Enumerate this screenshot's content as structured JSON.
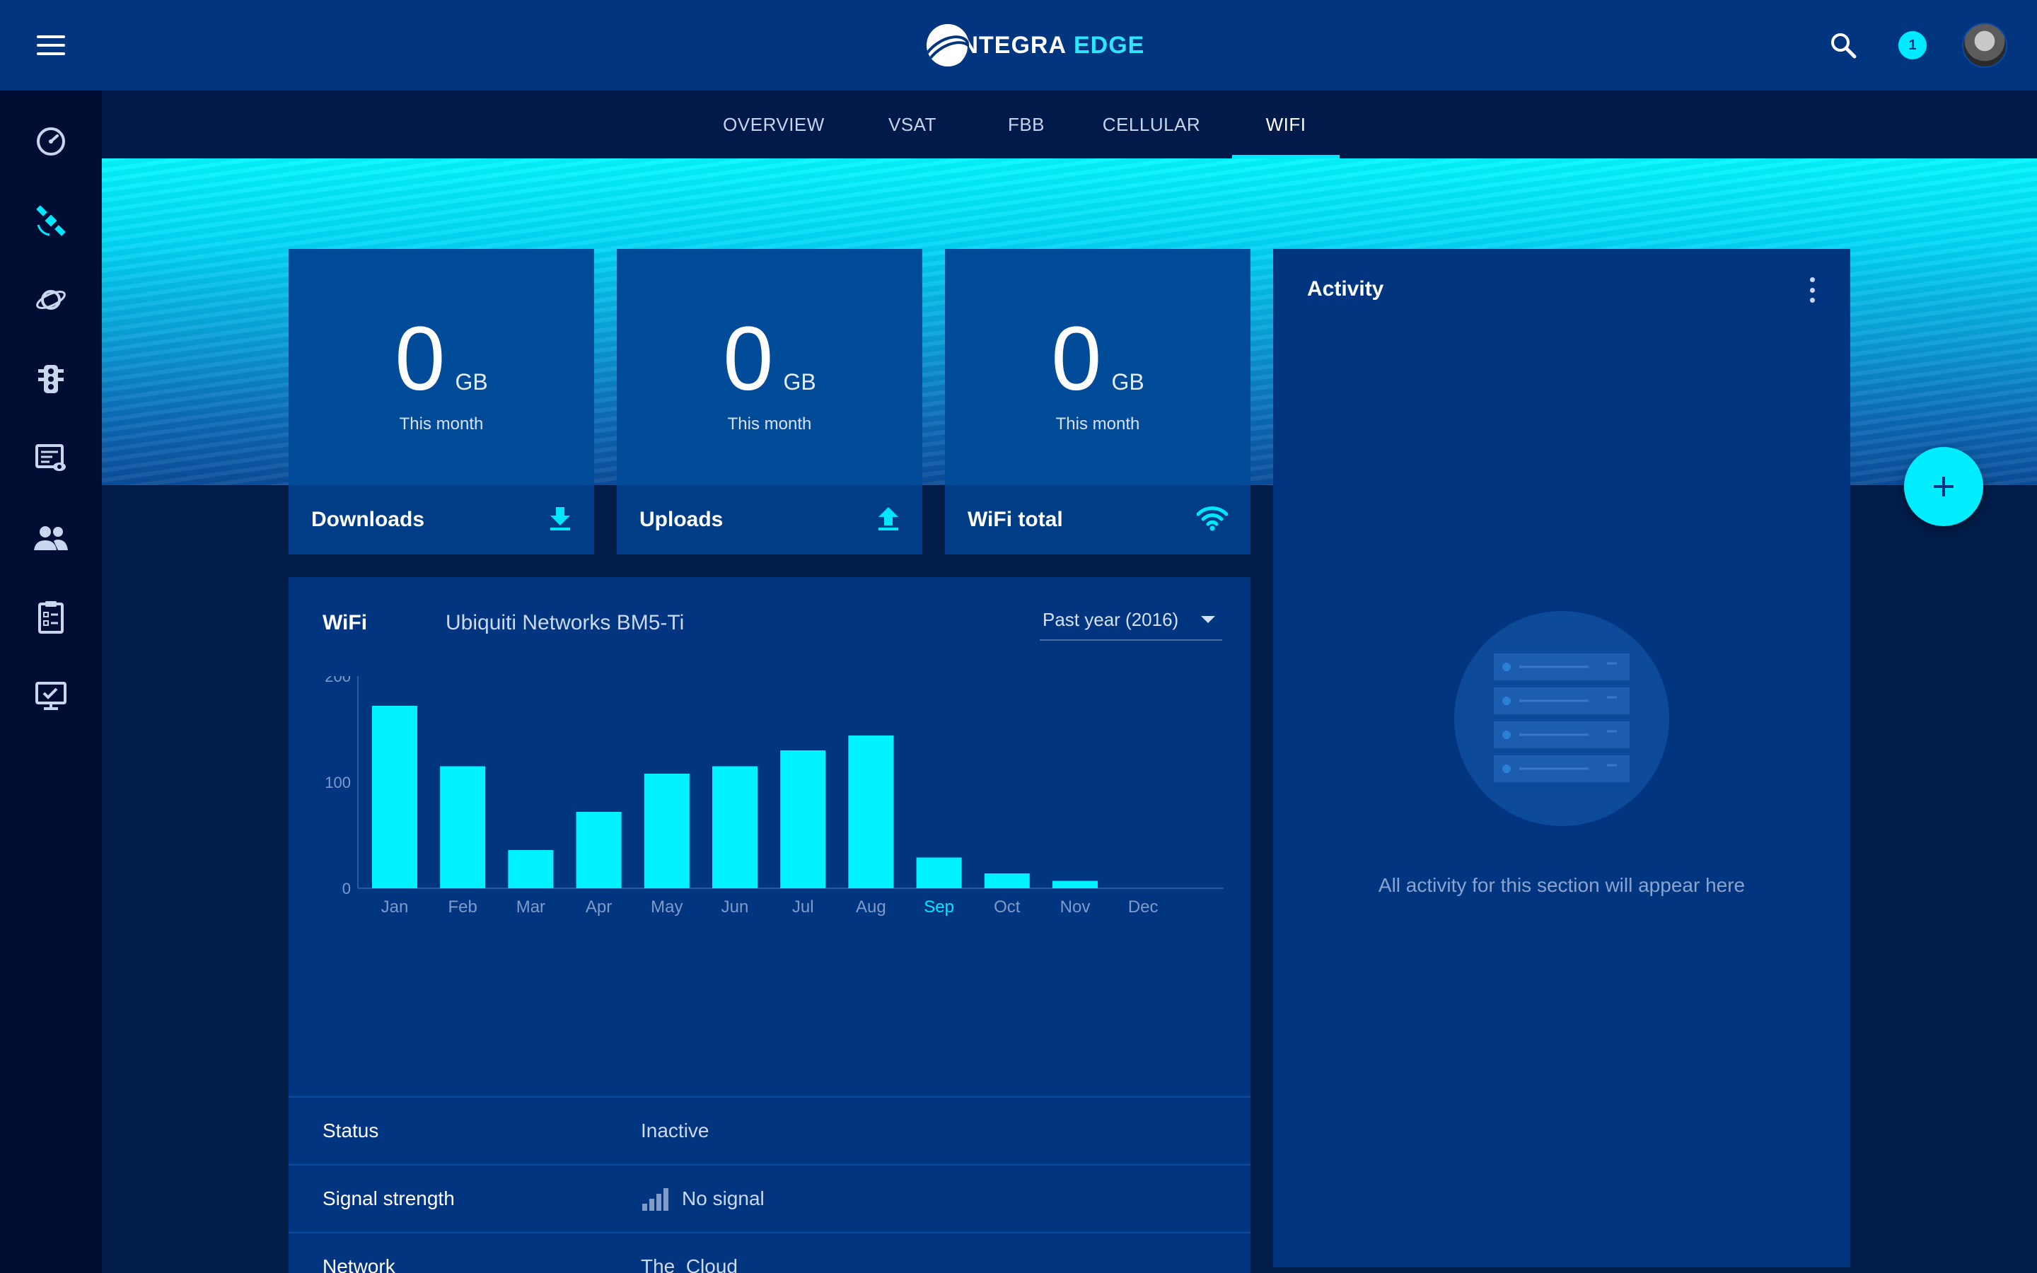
{
  "header": {
    "logo_left": "INTEGRA",
    "logo_right": "EDGE",
    "notification_count": "1"
  },
  "tabs": [
    {
      "label": "OVERVIEW"
    },
    {
      "label": "VSAT"
    },
    {
      "label": "FBB"
    },
    {
      "label": "CELLULAR"
    },
    {
      "label": "WIFI",
      "active": true
    }
  ],
  "sidebar": {
    "items": [
      {
        "icon": "speedometer-icon"
      },
      {
        "icon": "satellite-icon",
        "active": true
      },
      {
        "icon": "planet-icon"
      },
      {
        "icon": "traffic-light-icon"
      },
      {
        "icon": "monitoring-list-icon"
      },
      {
        "icon": "users-icon"
      },
      {
        "icon": "clipboard-icon"
      },
      {
        "icon": "monitor-check-icon"
      }
    ]
  },
  "stats": [
    {
      "value": "0",
      "unit": "GB",
      "period": "This month",
      "label": "Downloads",
      "icon": "download-icon"
    },
    {
      "value": "0",
      "unit": "GB",
      "period": "This month",
      "label": "Uploads",
      "icon": "upload-icon"
    },
    {
      "value": "0",
      "unit": "GB",
      "period": "This month",
      "label": "WiFi total",
      "icon": "wifi-icon"
    }
  ],
  "wifi_panel": {
    "title": "WiFi",
    "device": "Ubiquiti Networks BM5-Ti",
    "period_select": "Past year (2016)",
    "status_rows": [
      {
        "key": "Status",
        "value": "Inactive"
      },
      {
        "key": "Signal strength",
        "value": "No signal"
      },
      {
        "key": "Network",
        "value": "The_Cloud"
      }
    ]
  },
  "chart_data": {
    "type": "bar",
    "categories": [
      "Jan",
      "Feb",
      "Mar",
      "Apr",
      "May",
      "Jun",
      "Jul",
      "Aug",
      "Sep",
      "Oct",
      "Nov",
      "Dec"
    ],
    "values": [
      172,
      115,
      36,
      72,
      108,
      115,
      130,
      144,
      29,
      14,
      7,
      0
    ],
    "highlighted_category": "Sep",
    "y_ticks": [
      "0",
      "100",
      "200"
    ],
    "ylim": [
      0,
      200
    ],
    "bar_color": "#00f2ff"
  },
  "activity": {
    "title": "Activity",
    "empty_text": "All activity for this section will appear here"
  },
  "colors": {
    "accent": "#00e6ff",
    "topbar": "#01357f",
    "sidebar": "#010d33",
    "panel": "#01357f"
  }
}
